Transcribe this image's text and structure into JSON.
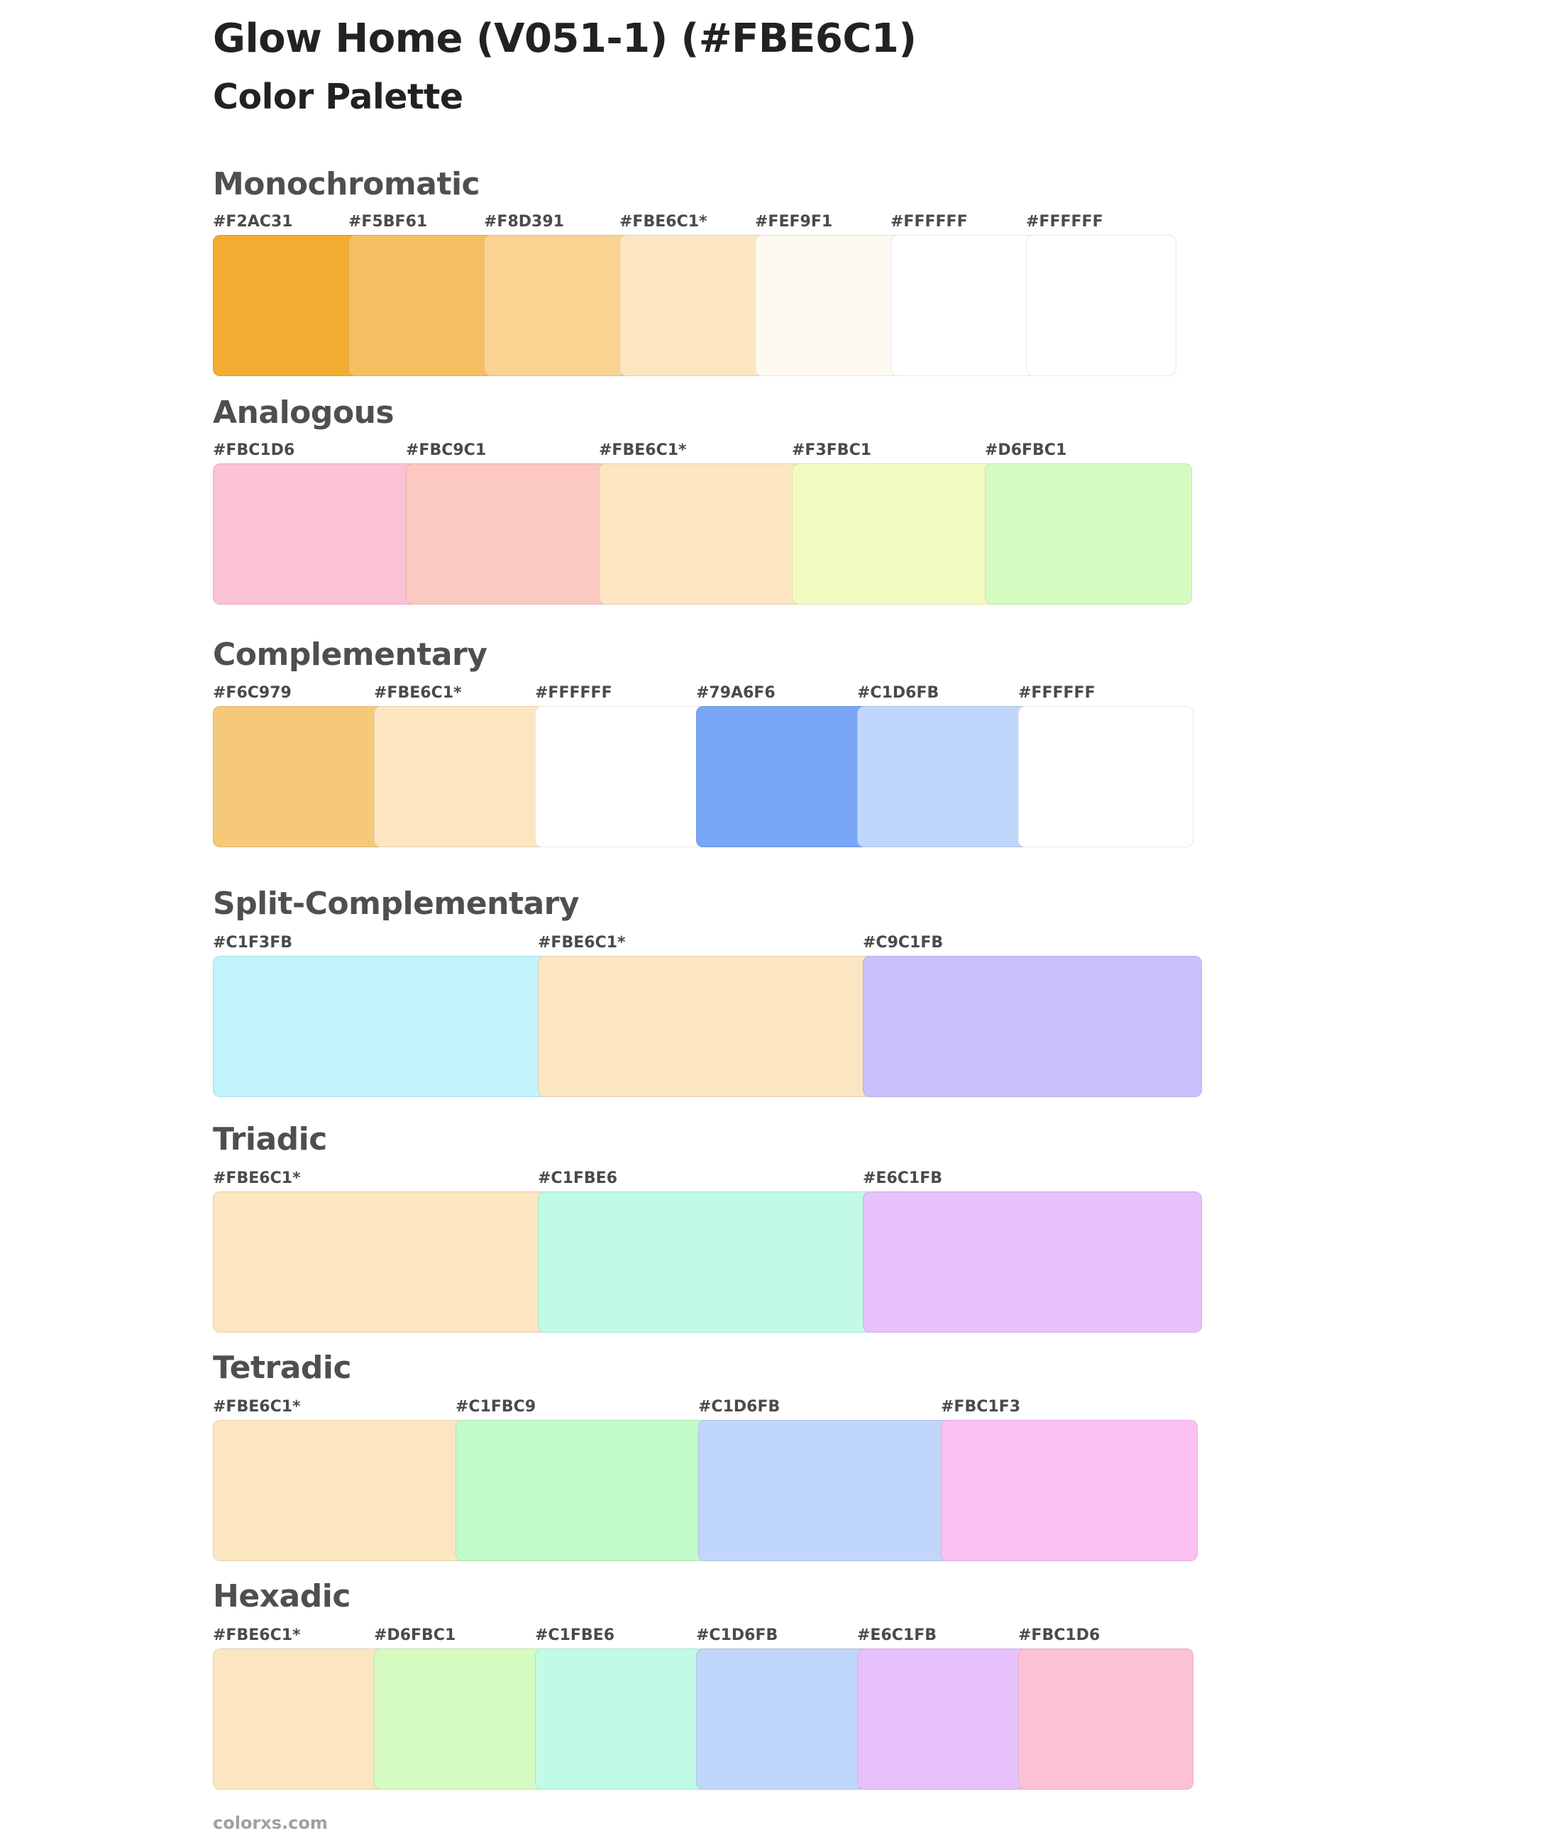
{
  "title": "Glow Home (V051-1) (#FBE6C1)",
  "subtitle": "Color Palette",
  "palettes": [
    {
      "name": "Monochromatic",
      "colors": [
        {
          "label": "#F2AC31",
          "hex": "#F2AC31"
        },
        {
          "label": "#F5BF61",
          "hex": "#F5BF61"
        },
        {
          "label": "#F8D391",
          "hex": "#F8D391"
        },
        {
          "label": "#FBE6C1*",
          "hex": "#FBE6C1"
        },
        {
          "label": "#FEF9F1",
          "hex": "#FEF9F1"
        },
        {
          "label": "#FFFFFF",
          "hex": "#FFFFFF"
        },
        {
          "label": "#FFFFFF",
          "hex": "#FFFFFF"
        }
      ]
    },
    {
      "name": "Analogous",
      "colors": [
        {
          "label": "#FBC1D6",
          "hex": "#FBC1D6"
        },
        {
          "label": "#FBC9C1",
          "hex": "#FBC9C1"
        },
        {
          "label": "#FBE6C1*",
          "hex": "#FBE6C1"
        },
        {
          "label": "#F3FBC1",
          "hex": "#F3FBC1"
        },
        {
          "label": "#D6FBC1",
          "hex": "#D6FBC1"
        }
      ]
    },
    {
      "name": "Complementary",
      "colors": [
        {
          "label": "#F6C979",
          "hex": "#F6C979"
        },
        {
          "label": "#FBE6C1*",
          "hex": "#FBE6C1"
        },
        {
          "label": "#FFFFFF",
          "hex": "#FFFFFF"
        },
        {
          "label": "#79A6F6",
          "hex": "#79A6F6"
        },
        {
          "label": "#C1D6FB",
          "hex": "#C1D6FB"
        },
        {
          "label": "#FFFFFF",
          "hex": "#FFFFFF"
        }
      ]
    },
    {
      "name": "Split-Complementary",
      "colors": [
        {
          "label": "#C1F3FB",
          "hex": "#C1F3FB"
        },
        {
          "label": "#FBE6C1*",
          "hex": "#FBE6C1"
        },
        {
          "label": "#C9C1FB",
          "hex": "#C9C1FB"
        }
      ]
    },
    {
      "name": "Triadic",
      "colors": [
        {
          "label": "#FBE6C1*",
          "hex": "#FBE6C1"
        },
        {
          "label": "#C1FBE6",
          "hex": "#C1FBE6"
        },
        {
          "label": "#E6C1FB",
          "hex": "#E6C1FB"
        }
      ]
    },
    {
      "name": "Tetradic",
      "colors": [
        {
          "label": "#FBE6C1*",
          "hex": "#FBE6C1"
        },
        {
          "label": "#C1FBC9",
          "hex": "#C1FBC9"
        },
        {
          "label": "#C1D6FB",
          "hex": "#C1D6FB"
        },
        {
          "label": "#FBC1F3",
          "hex": "#FBC1F3"
        }
      ]
    },
    {
      "name": "Hexadic",
      "colors": [
        {
          "label": "#FBE6C1*",
          "hex": "#FBE6C1"
        },
        {
          "label": "#D6FBC1",
          "hex": "#D6FBC1"
        },
        {
          "label": "#C1FBE6",
          "hex": "#C1FBE6"
        },
        {
          "label": "#C1D6FB",
          "hex": "#C1D6FB"
        },
        {
          "label": "#E6C1FB",
          "hex": "#E6C1FB"
        },
        {
          "label": "#FBC1D6",
          "hex": "#FBC1D6"
        }
      ]
    }
  ],
  "footer": "colorxs.com"
}
